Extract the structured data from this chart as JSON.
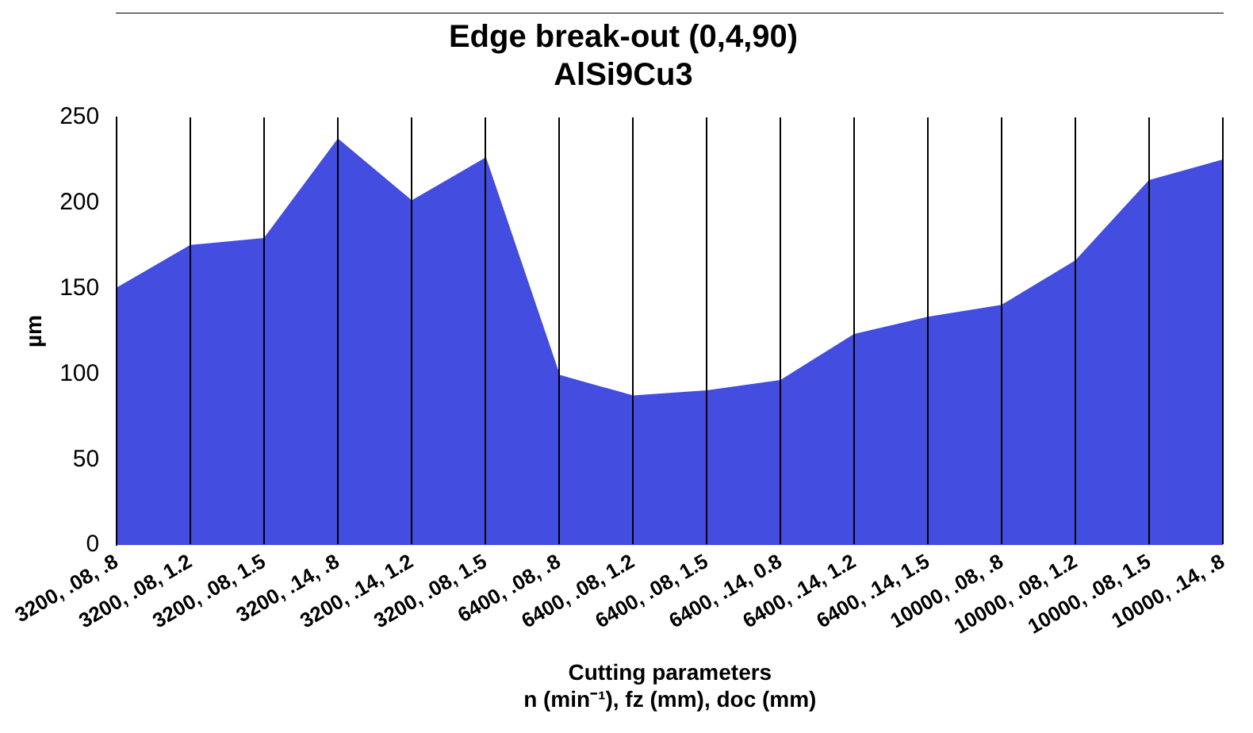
{
  "chart_data": {
    "type": "area",
    "title": [
      "Edge break-out (0,4,90)",
      "AlSi9Cu3"
    ],
    "xlabel": [
      "Cutting parameters",
      "n (min⁻¹), fz (mm), doc (mm)"
    ],
    "ylabel": "µm",
    "categories": [
      "3200, .08, .8",
      "3200, .08, 1.2",
      "3200, .08, 1.5",
      "3200, .14, .8",
      "3200, .14, 1.2",
      "3200, .08, 1.5",
      "6400, .08, .8",
      "6400, .08, 1.2",
      "6400, .08, 1.5",
      "6400, .14, 0.8",
      "6400, .14, 1.2",
      "6400, .14, 1.5",
      "10000, .08, .8",
      "10000, .08, 1.2",
      "10000, .08, 1.5",
      "10000, .14, .8"
    ],
    "values": [
      150,
      175,
      179,
      237,
      201,
      226,
      99,
      87,
      90,
      96,
      123,
      133,
      140,
      166,
      213,
      225
    ],
    "color": "#434de0",
    "ylim": [
      0,
      250
    ],
    "yticks": [
      0,
      50,
      100,
      150,
      200,
      250
    ],
    "grid": "x",
    "legend": false
  }
}
